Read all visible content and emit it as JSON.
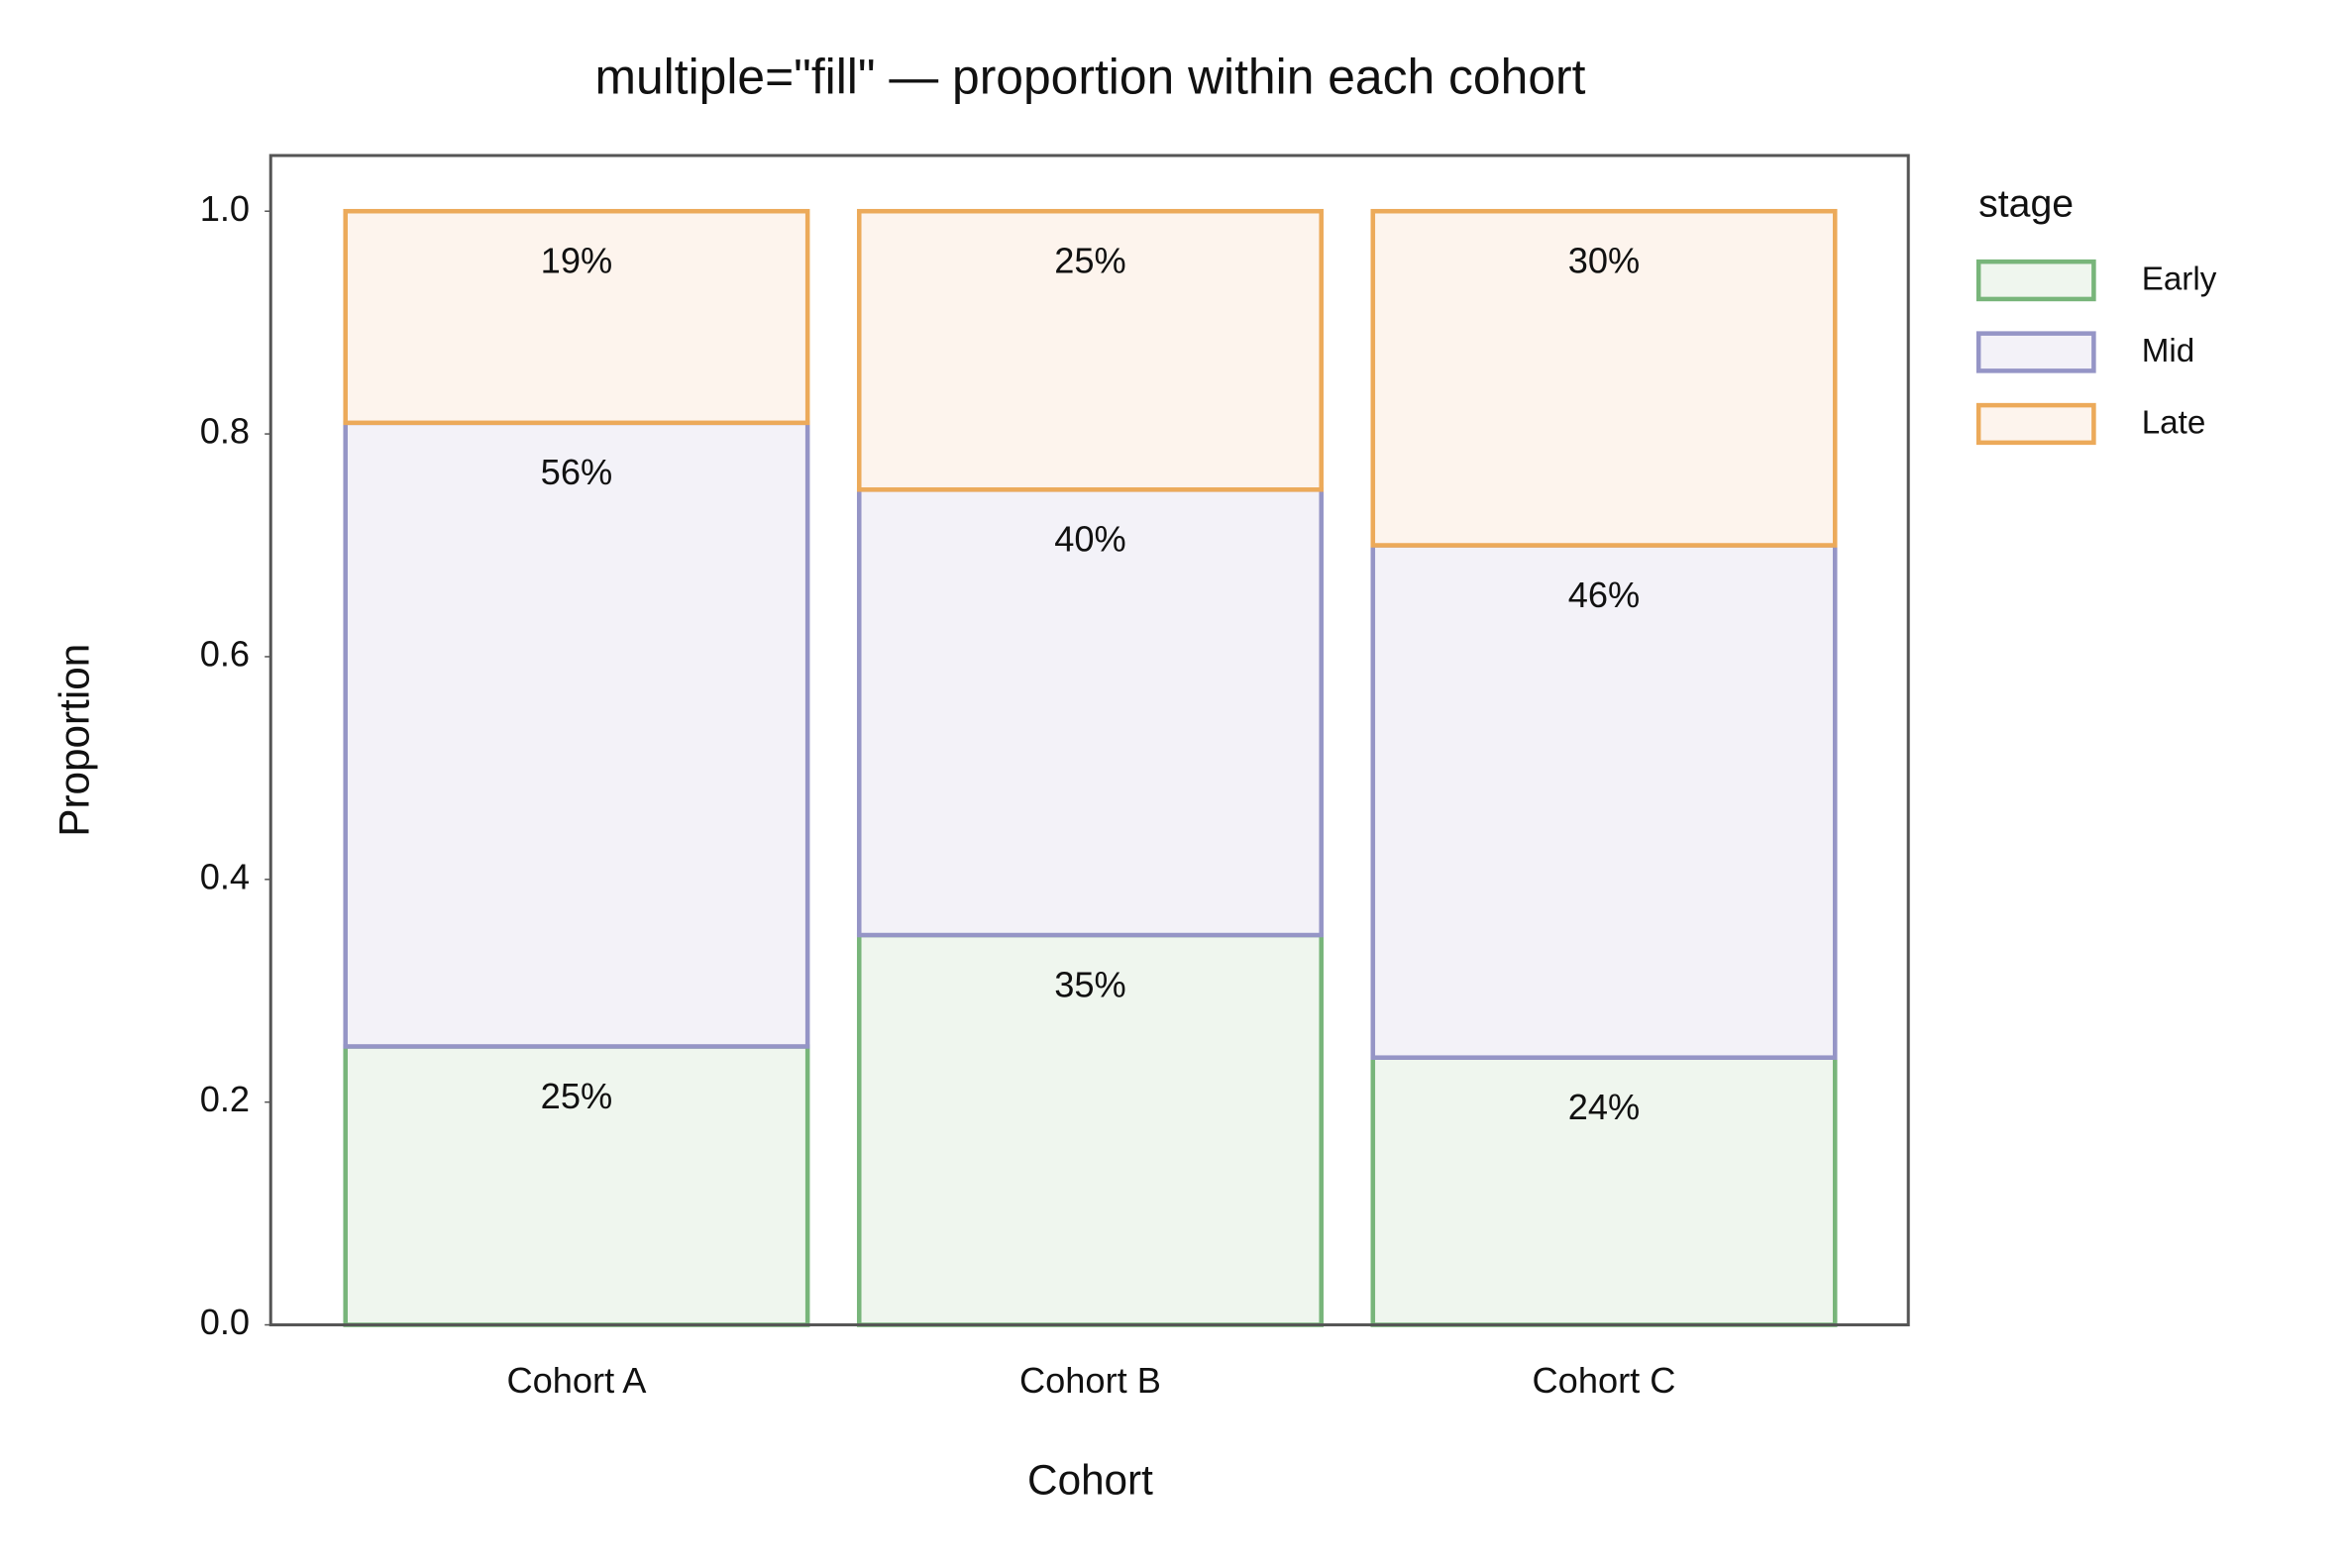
{
  "chart_data": {
    "type": "stacked-bar",
    "title": "multiple=\"fill\" — proportion within each cohort",
    "x_label": "Cohort",
    "y_label": "Proportion",
    "categories": [
      "Cohort A",
      "Cohort B",
      "Cohort C"
    ],
    "series": [
      {
        "name": "Early",
        "color": "#78b57a",
        "fill": "#eff6ee",
        "values": [
          0.25,
          0.35,
          0.24
        ],
        "value_labels": [
          "25%",
          "35%",
          "24%"
        ]
      },
      {
        "name": "Mid",
        "color": "#9595c6",
        "fill": "#f3f2f8",
        "values": [
          0.56,
          0.4,
          0.46
        ],
        "value_labels": [
          "56%",
          "40%",
          "46%"
        ]
      },
      {
        "name": "Late",
        "color": "#ecaa5a",
        "fill": "#fdf4ed",
        "values": [
          0.19,
          0.25,
          0.3
        ],
        "value_labels": [
          "19%",
          "25%",
          "30%"
        ]
      }
    ],
    "legend_title": "stage",
    "legend": "outside-right",
    "ylim": [
      0,
      1.05
    ],
    "yticks": [
      {
        "value": 0,
        "label": "0.0"
      },
      0.2,
      0.4,
      0.6,
      0.8,
      {
        "value": 1,
        "label": "1.0"
      }
    ],
    "grid": false
  }
}
